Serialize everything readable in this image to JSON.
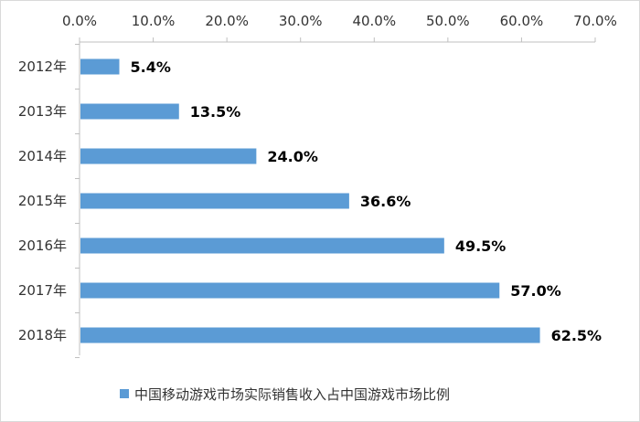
{
  "chart_data": {
    "type": "bar",
    "orientation": "horizontal",
    "categories": [
      "2012年",
      "2013年",
      "2014年",
      "2015年",
      "2016年",
      "2017年",
      "2018年"
    ],
    "series": [
      {
        "name": "中国移动游戏市场实际销售收入占中国游戏市场比例",
        "values": [
          5.4,
          13.5,
          24.0,
          36.6,
          49.5,
          57.0,
          62.5
        ],
        "data_labels": [
          "5.4%",
          "13.5%",
          "24.0%",
          "36.6%",
          "49.5%",
          "57.0%",
          "62.5%"
        ],
        "color": "#5b9bd5"
      }
    ],
    "x_ticks": [
      "0.0%",
      "10.0%",
      "20.0%",
      "30.0%",
      "40.0%",
      "50.0%",
      "60.0%",
      "70.0%"
    ],
    "xlim": [
      0,
      70
    ],
    "x_axis_position": "top",
    "title": "",
    "xlabel": "",
    "ylabel": "",
    "grid": false,
    "legend_position": "bottom"
  }
}
